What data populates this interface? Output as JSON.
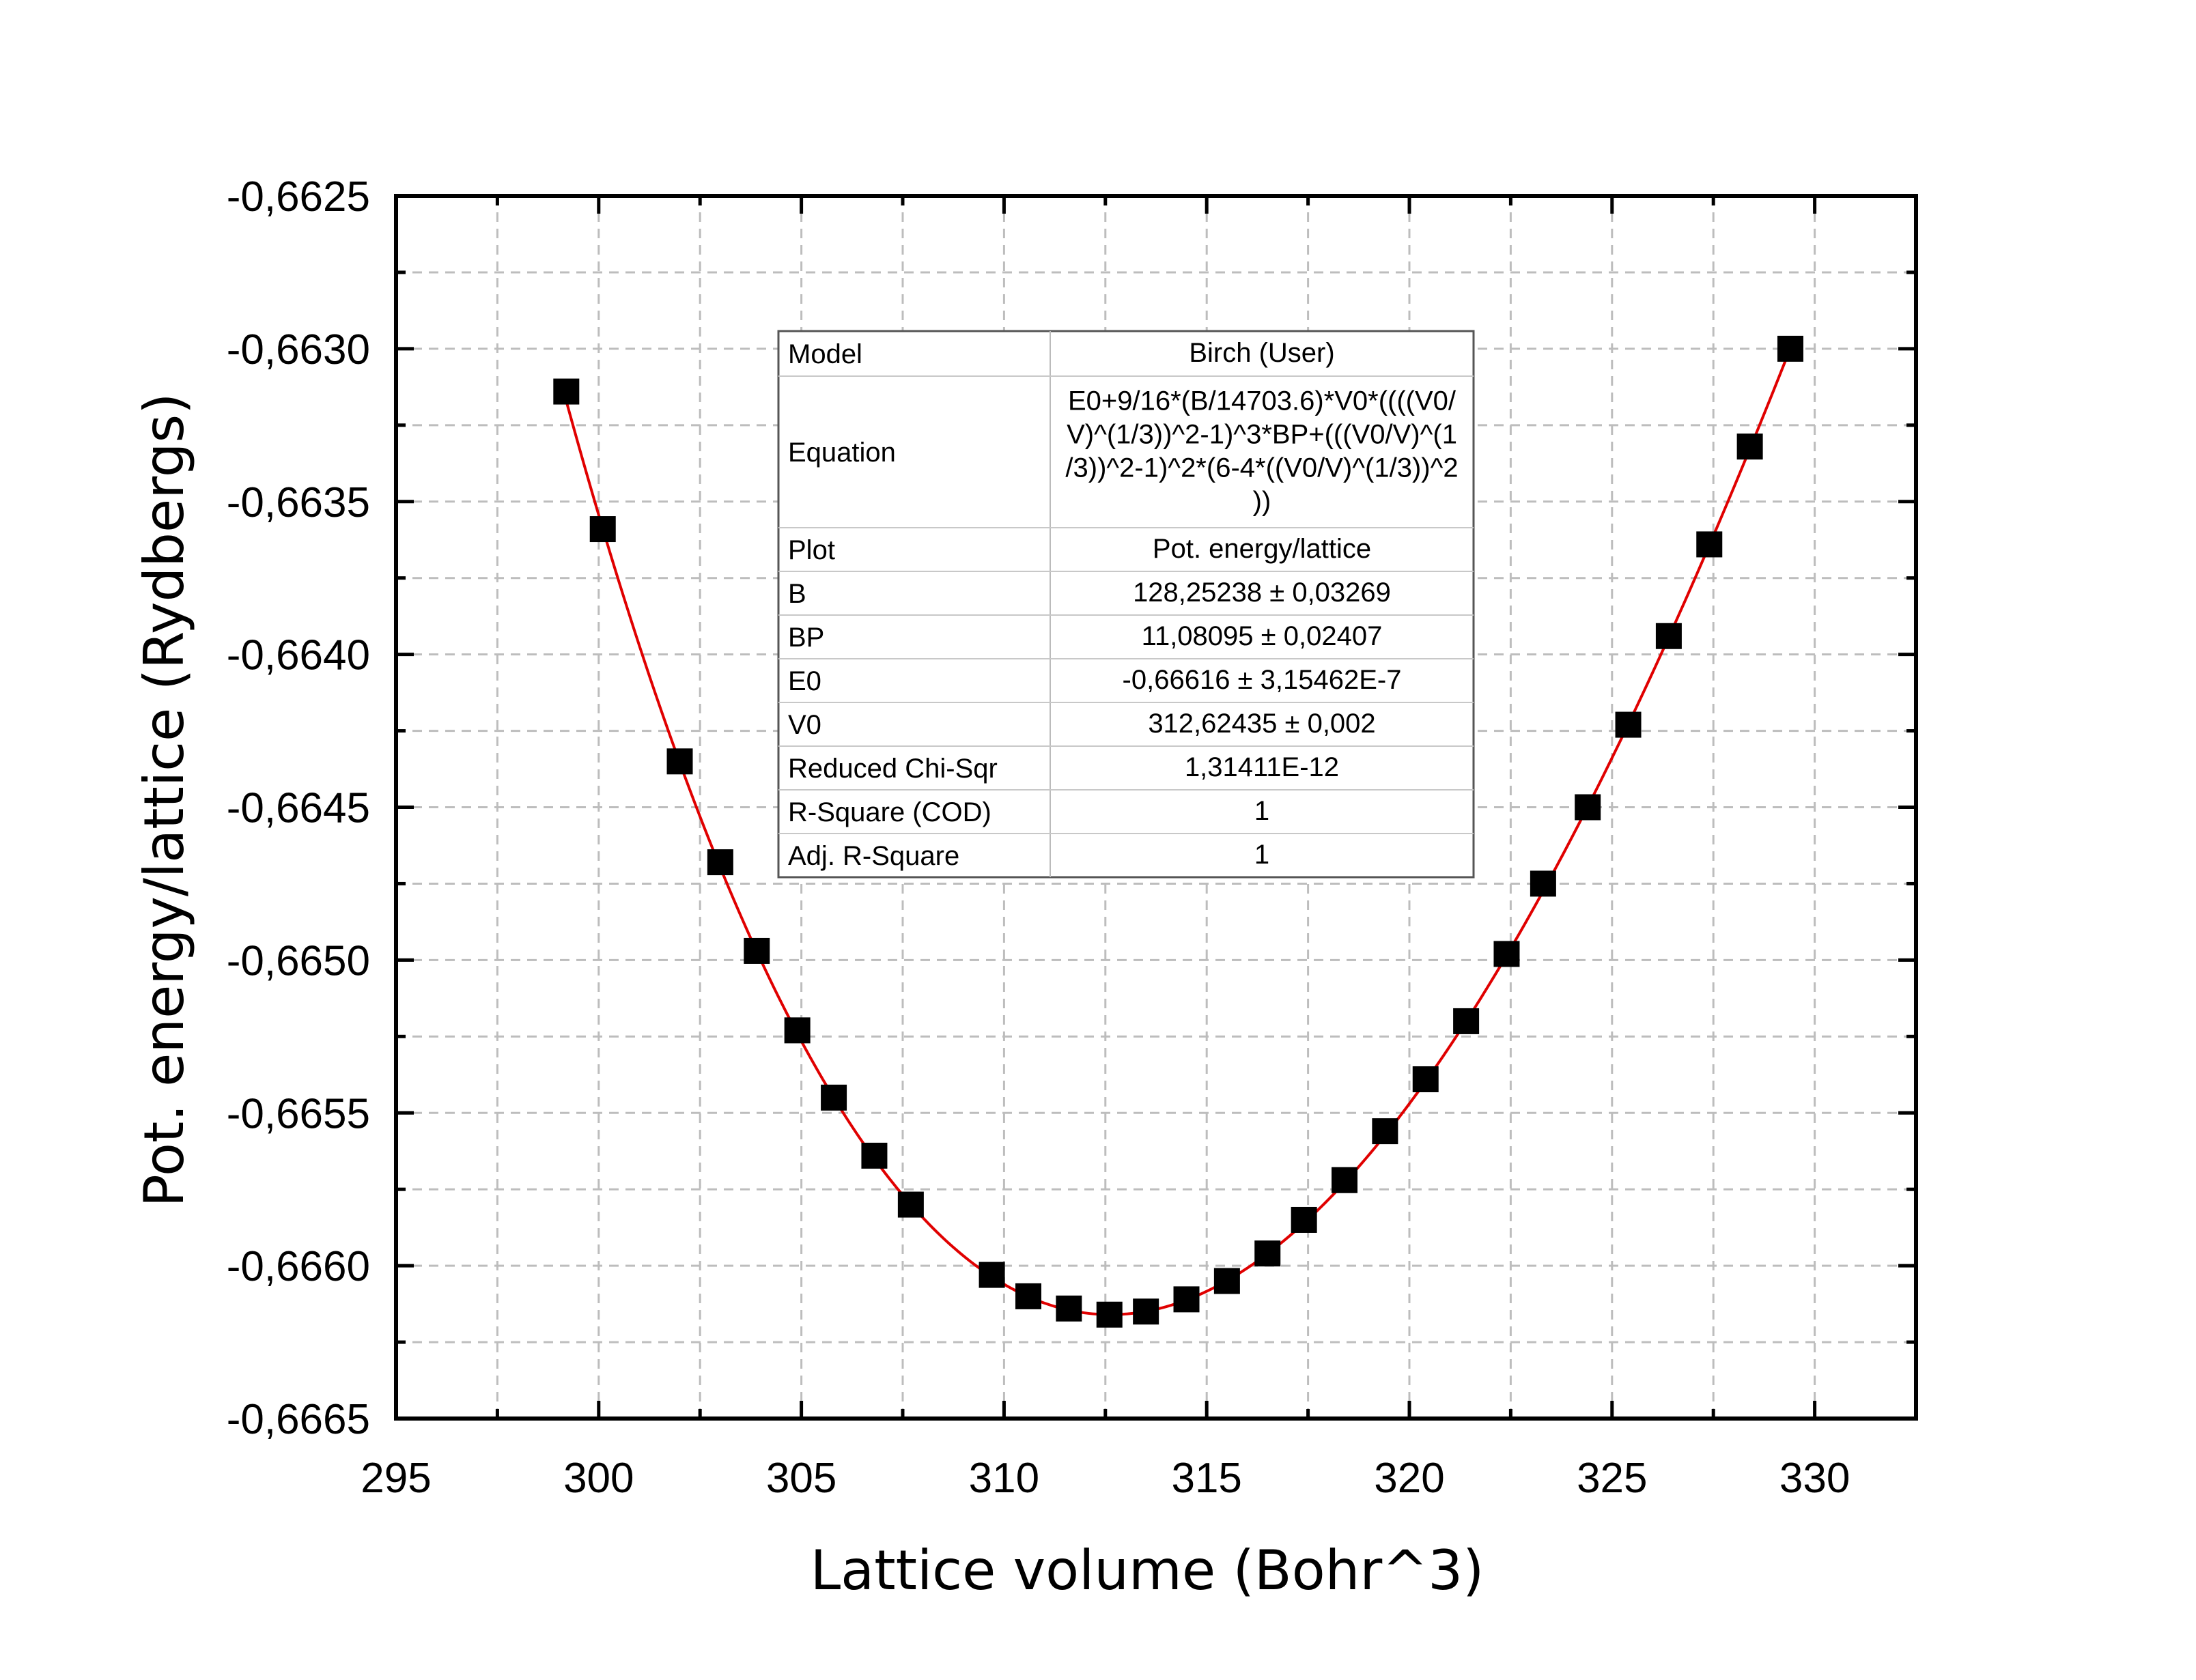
{
  "chart_data": {
    "type": "scatter",
    "title": "",
    "xlabel": "Lattice volume (Bohr^3)",
    "ylabel": "Pot. energy/lattice (Rydbergs)",
    "xlim": [
      295,
      332.5
    ],
    "ylim": [
      -0.6665,
      -0.6625
    ],
    "x_ticks": [
      295,
      300,
      305,
      310,
      315,
      320,
      325,
      330
    ],
    "x_tick_labels": [
      "295",
      "300",
      "305",
      "310",
      "315",
      "320",
      "325",
      "330"
    ],
    "y_ticks": [
      -0.6665,
      -0.666,
      -0.6655,
      -0.665,
      -0.6645,
      -0.664,
      -0.6635,
      -0.663,
      -0.6625
    ],
    "y_tick_labels": [
      "-0,6665",
      "-0,6660",
      "-0,6655",
      "-0,6650",
      "-0,6645",
      "-0,6640",
      "-0,6635",
      "-0,6630",
      "-0,6625"
    ],
    "grid": true,
    "colors": {
      "points": "#000000",
      "fit_line": "#e00000",
      "grid": "#bdbdbd"
    },
    "series": [
      {
        "x": [
          299.2,
          300.1,
          302.0,
          303.0,
          303.9,
          304.9,
          305.8,
          306.8,
          307.7,
          309.7,
          310.6,
          311.6,
          312.6,
          313.5,
          314.5,
          315.5,
          316.5,
          317.4,
          318.4,
          319.4,
          320.4,
          321.4,
          322.4,
          323.3,
          324.4,
          325.4,
          326.4,
          327.4,
          328.4,
          329.4
        ],
        "y": [
          -0.66314,
          -0.66359,
          -0.66435,
          -0.66468,
          -0.66497,
          -0.66523,
          -0.66545,
          -0.66564,
          -0.6658,
          -0.66603,
          -0.6661,
          -0.66614,
          -0.66616,
          -0.66615,
          -0.66611,
          -0.66605,
          -0.66596,
          -0.66585,
          -0.66572,
          -0.66556,
          -0.66539,
          -0.6652,
          -0.66498,
          -0.66475,
          -0.6645,
          -0.66423,
          -0.66394,
          -0.66364,
          -0.66332,
          -0.663
        ]
      }
    ],
    "fit": {
      "model": "Birch",
      "B": 128.25238,
      "BP": 11.08095,
      "E0": -0.66616,
      "V0": 312.62435,
      "x_range": [
        299.2,
        329.4
      ]
    },
    "fit_table": {
      "rows": [
        {
          "label": "Model",
          "value_lines": [
            "Birch (User)"
          ]
        },
        {
          "label": "Equation",
          "value_lines": [
            "E0+9/16*(B/14703.6)*V0*((((V0/",
            "V)^(1/3))^2-1)^3*BP+(((V0/V)^(1",
            "/3))^2-1)^2*(6-4*((V0/V)^(1/3))^2",
            "))"
          ]
        },
        {
          "label": "Plot",
          "value_lines": [
            "Pot. energy/lattice"
          ]
        },
        {
          "label": "B",
          "value_lines": [
            "128,25238 ± 0,03269"
          ]
        },
        {
          "label": "BP",
          "value_lines": [
            "11,08095 ± 0,02407"
          ]
        },
        {
          "label": "E0",
          "value_lines": [
            "-0,66616 ± 3,15462E-7"
          ]
        },
        {
          "label": "V0",
          "value_lines": [
            "312,62435 ± 0,002"
          ]
        },
        {
          "label": "Reduced Chi-Sqr",
          "value_lines": [
            "1,31411E-12"
          ]
        },
        {
          "label": "R-Square (COD)",
          "value_lines": [
            "1"
          ]
        },
        {
          "label": "Adj. R-Square",
          "value_lines": [
            "1"
          ]
        }
      ]
    }
  }
}
